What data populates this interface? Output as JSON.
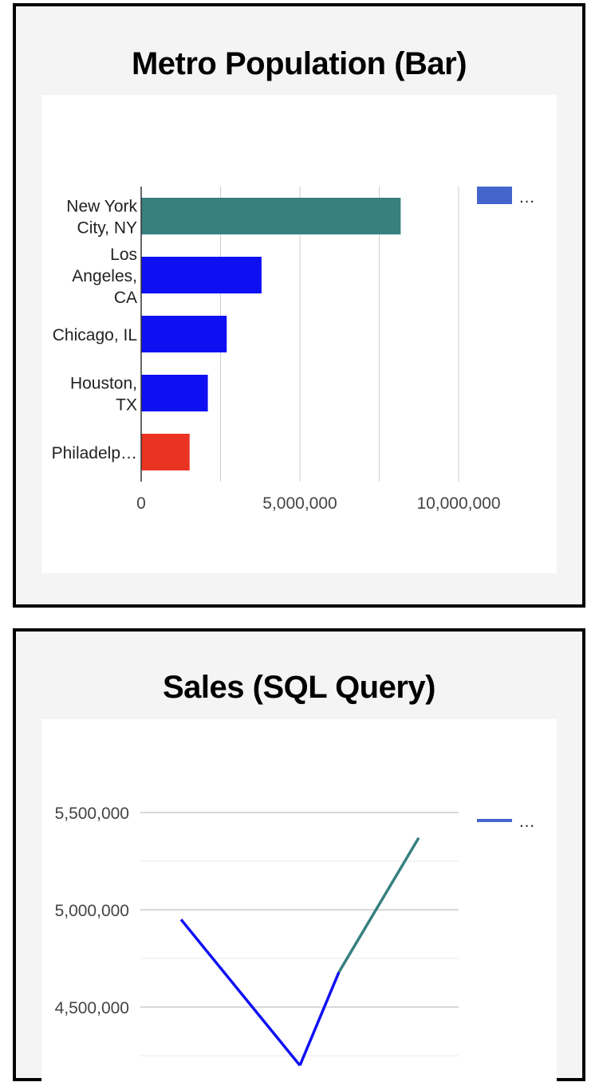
{
  "colors": {
    "background": "#f4f4f4",
    "plot_background": "#ffffff",
    "gridline": "#cccccc",
    "minor_gridline": "#ebebeb",
    "axis_label": "#444444",
    "bar_teal": "#388080",
    "bar_blue": "#0f10f2",
    "bar_red": "#ea3322",
    "legend_blue": "#4466cc"
  },
  "charts": [
    {
      "title": "Metro Population (Bar)",
      "legend_text": "…",
      "legend_icon": "legend-swatch"
    },
    {
      "title": "Sales (SQL Query)",
      "legend_text": "…",
      "legend_icon": "legend-line"
    }
  ],
  "chart_data": [
    {
      "type": "bar",
      "orientation": "horizontal",
      "title": "Metro Population (Bar)",
      "categories": [
        [
          "New York",
          "City, NY"
        ],
        [
          "Los",
          "Angeles,",
          "CA"
        ],
        [
          "Chicago, IL"
        ],
        [
          "Houston,",
          "TX"
        ],
        [
          "Philadelp…"
        ]
      ],
      "values": [
        8175000,
        3792000,
        2695000,
        2100000,
        1526000
      ],
      "bar_colors": [
        "#388080",
        "#0f10f2",
        "#0f10f2",
        "#0f10f2",
        "#ea3322"
      ],
      "xlim": [
        0,
        10000000
      ],
      "x_ticks": [
        0,
        5000000,
        10000000
      ],
      "x_tick_labels": [
        "0",
        "5,000,000",
        "10,000,000"
      ],
      "grid": true,
      "legend": {
        "position": "right",
        "entries": [
          "…"
        ]
      }
    },
    {
      "type": "line",
      "title": "Sales (SQL Query)",
      "x": [
        0,
        1,
        2,
        3
      ],
      "series": [
        {
          "values": [
            4950000,
            4200000,
            4680000,
            5370000
          ],
          "segment_colors": [
            "#0f10f2",
            "#0f10f2",
            "#388080"
          ]
        }
      ],
      "y_ticks": [
        4500000,
        5000000,
        5500000
      ],
      "y_tick_labels": [
        "4,500,000",
        "5,000,000",
        "5,500,000"
      ],
      "ylim": [
        3750000,
        5500000
      ],
      "grid": true,
      "legend": {
        "position": "right",
        "entries": [
          "…"
        ]
      }
    }
  ]
}
